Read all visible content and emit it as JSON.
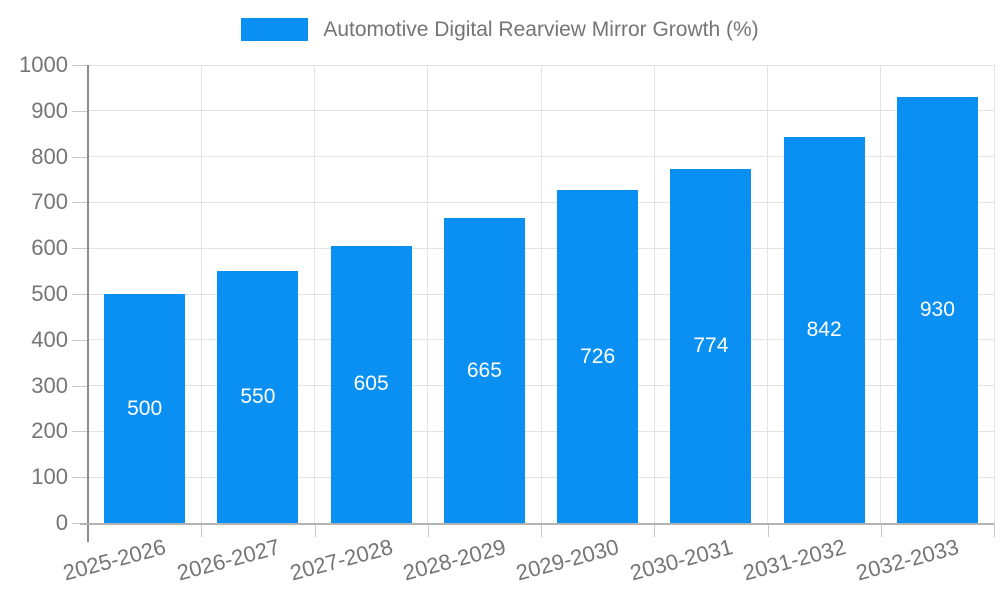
{
  "chart_data": {
    "type": "bar",
    "title": "Automotive Digital Rearview Mirror Growth (%)",
    "categories": [
      "2025-2026",
      "2026-2027",
      "2027-2028",
      "2028-2029",
      "2029-2030",
      "2030-2031",
      "2031-2032",
      "2032-2033"
    ],
    "values": [
      500,
      550,
      605,
      665,
      726,
      774,
      842,
      930
    ],
    "bar_value_labels": [
      "500",
      "550",
      "605",
      "665",
      "726",
      "774",
      "842",
      "930"
    ],
    "xlabel": "",
    "ylabel": "",
    "ylim": [
      0,
      1000
    ],
    "yticks": [
      0,
      100,
      200,
      300,
      400,
      500,
      600,
      700,
      800,
      900,
      1000
    ],
    "grid": "horizontal and vertical light gray gridlines",
    "legend_position": "top-center",
    "colors": {
      "bar": "#0a90f2",
      "bar_value_label": "#ffffff",
      "axis_text": "#757575",
      "gridline": "#e3e3e3",
      "tick": "#c9c9c9",
      "y_axis_line": "#8c8c8c",
      "x_axis_line": "#b3b3b3",
      "background": "#ffffff"
    }
  }
}
